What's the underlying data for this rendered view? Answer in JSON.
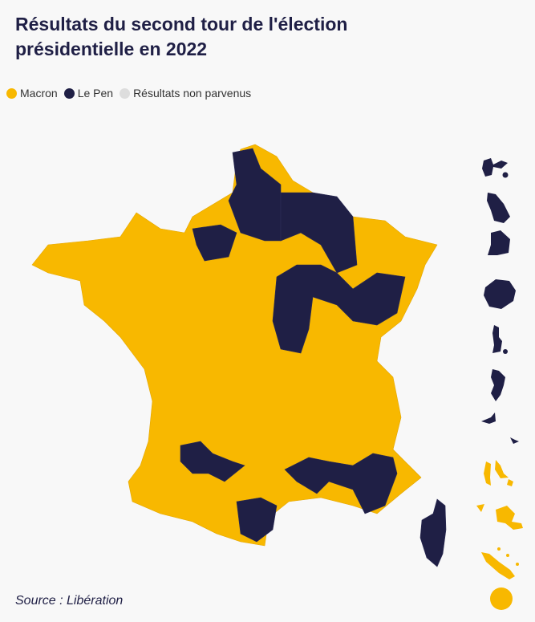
{
  "title": "Résultats du second tour de l'élection présidentielle en 2022",
  "legend": [
    {
      "label": "Macron",
      "color": "#f8b800"
    },
    {
      "label": "Le Pen",
      "color": "#1f1f45"
    },
    {
      "label": "Résultats non parvenus",
      "color": "#dddddd"
    }
  ],
  "regions": {
    "metropole": "Macron",
    "le_pen_areas": [
      "Nord / Pas-de-Calais / Somme",
      "Aisne / Marne / Ardennes / Meuse",
      "Calvados / Orne",
      "Bourgogne / Haute-Marne / Haute-Saône",
      "Lot-et-Garonne / Tarn-et-Garonne",
      "Gard / Vaucluse / Var",
      "Aude / Pyrénées-Orientales",
      "Corse"
    ],
    "overseas": [
      {
        "name": "Guadeloupe",
        "winner": "Le Pen"
      },
      {
        "name": "Martinique",
        "winner": "Le Pen"
      },
      {
        "name": "Guyane",
        "winner": "Le Pen"
      },
      {
        "name": "La Réunion",
        "winner": "Le Pen"
      },
      {
        "name": "Saint-Pierre-et-Miquelon",
        "winner": "Le Pen"
      },
      {
        "name": "Mayotte",
        "winner": "Le Pen"
      },
      {
        "name": "Saint-Martin / Saint-Barthélemy",
        "winner": "Le Pen"
      },
      {
        "name": "Wallis-et-Futuna",
        "winner": "Le Pen"
      },
      {
        "name": "Polynésie française",
        "winner": "Macron"
      },
      {
        "name": "Nouvelle-Calédonie",
        "winner": "Macron"
      },
      {
        "name": "Français de l'étranger",
        "winner": "Macron"
      }
    ]
  },
  "source": "Source : Libération"
}
